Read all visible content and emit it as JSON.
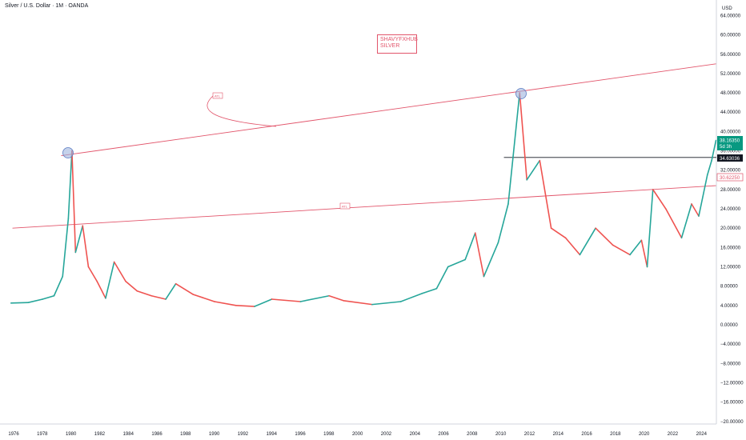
{
  "header": {
    "title": "Silver / U.S. Dollar · 1M · OANDA"
  },
  "currency": "USD",
  "watermark": {
    "line1": "SHAVYFXHUB",
    "line2": "SILVER"
  },
  "colors": {
    "up": "#26a69a",
    "down": "#ef5350",
    "line": "#e2556b",
    "price": "#089981",
    "dark": "#131722"
  },
  "tags": {
    "current_price": "38.16350",
    "countdown": "5d 3h",
    "level": "34.63036",
    "pink": "30.62250"
  },
  "annotations": {
    "atl_top": "ATL",
    "atl_mid": "ATL"
  },
  "chart_data": {
    "type": "candlestick",
    "title": "Silver / U.S. Dollar · 1M · OANDA",
    "y_axis": {
      "ticks": [
        "64.00000",
        "60.00000",
        "56.00000",
        "52.00000",
        "48.00000",
        "44.00000",
        "40.00000",
        "36.00000",
        "32.00000",
        "28.00000",
        "24.00000",
        "20.00000",
        "16.00000",
        "12.00000",
        "8.00000",
        "4.00000",
        "0.00000",
        "−4.00000",
        "−8.00000",
        "−12.00000",
        "−16.00000",
        "−20.00000"
      ],
      "range": [
        -20,
        64
      ]
    },
    "x_axis": {
      "ticks": [
        "1976",
        "1978",
        "1980",
        "1982",
        "1984",
        "1986",
        "1988",
        "1990",
        "1992",
        "1994",
        "1996",
        "1998",
        "2000",
        "2002",
        "2004",
        "2006",
        "2008",
        "2010",
        "2012",
        "2014",
        "2016",
        "2018",
        "2020",
        "2022",
        "2024"
      ],
      "range": [
        1975.7,
        2025.0
      ]
    },
    "series": [
      {
        "x": 1975.8,
        "y": 4.5
      },
      {
        "x": 1977.0,
        "y": 4.6
      },
      {
        "x": 1978.0,
        "y": 5.3
      },
      {
        "x": 1978.8,
        "y": 6.0
      },
      {
        "x": 1979.4,
        "y": 10.0
      },
      {
        "x": 1979.8,
        "y": 22.0
      },
      {
        "x": 1980.05,
        "y": 36.0
      },
      {
        "x": 1980.3,
        "y": 15.0
      },
      {
        "x": 1980.8,
        "y": 20.5
      },
      {
        "x": 1981.2,
        "y": 12.0
      },
      {
        "x": 1981.8,
        "y": 9.0
      },
      {
        "x": 1982.4,
        "y": 5.5
      },
      {
        "x": 1983.0,
        "y": 13.0
      },
      {
        "x": 1983.8,
        "y": 9.0
      },
      {
        "x": 1984.6,
        "y": 7.0
      },
      {
        "x": 1985.6,
        "y": 6.0
      },
      {
        "x": 1986.6,
        "y": 5.3
      },
      {
        "x": 1987.3,
        "y": 8.5
      },
      {
        "x": 1988.5,
        "y": 6.3
      },
      {
        "x": 1990.0,
        "y": 4.8
      },
      {
        "x": 1991.5,
        "y": 4.0
      },
      {
        "x": 1992.8,
        "y": 3.8
      },
      {
        "x": 1994.0,
        "y": 5.3
      },
      {
        "x": 1996.0,
        "y": 4.8
      },
      {
        "x": 1998.0,
        "y": 6.0
      },
      {
        "x": 1999.0,
        "y": 5.0
      },
      {
        "x": 2001.0,
        "y": 4.2
      },
      {
        "x": 2003.0,
        "y": 4.8
      },
      {
        "x": 2004.5,
        "y": 6.5
      },
      {
        "x": 2005.5,
        "y": 7.5
      },
      {
        "x": 2006.3,
        "y": 12.0
      },
      {
        "x": 2007.5,
        "y": 13.5
      },
      {
        "x": 2008.2,
        "y": 19.0
      },
      {
        "x": 2008.8,
        "y": 10.0
      },
      {
        "x": 2009.8,
        "y": 17.0
      },
      {
        "x": 2010.5,
        "y": 25.0
      },
      {
        "x": 2011.3,
        "y": 48.0
      },
      {
        "x": 2011.8,
        "y": 30.0
      },
      {
        "x": 2012.7,
        "y": 34.0
      },
      {
        "x": 2013.5,
        "y": 20.0
      },
      {
        "x": 2014.5,
        "y": 18.0
      },
      {
        "x": 2015.5,
        "y": 14.5
      },
      {
        "x": 2016.6,
        "y": 20.0
      },
      {
        "x": 2017.8,
        "y": 16.5
      },
      {
        "x": 2019.0,
        "y": 14.5
      },
      {
        "x": 2019.8,
        "y": 17.5
      },
      {
        "x": 2020.2,
        "y": 12.0
      },
      {
        "x": 2020.6,
        "y": 28.0
      },
      {
        "x": 2021.5,
        "y": 24.0
      },
      {
        "x": 2022.6,
        "y": 18.0
      },
      {
        "x": 2023.3,
        "y": 25.0
      },
      {
        "x": 2023.8,
        "y": 22.5
      },
      {
        "x": 2024.4,
        "y": 31.0
      },
      {
        "x": 2024.7,
        "y": 34.0
      },
      {
        "x": 2025.0,
        "y": 38.16
      }
    ],
    "horizontal_line": 34.63,
    "trendlines": [
      {
        "name": "upper",
        "points": [
          [
            1979.3,
            35.0
          ],
          [
            2025.0,
            54.0
          ]
        ]
      },
      {
        "name": "lower",
        "points": [
          [
            1975.9,
            20.0
          ],
          [
            2025.0,
            28.8
          ]
        ]
      }
    ],
    "grid": false
  }
}
